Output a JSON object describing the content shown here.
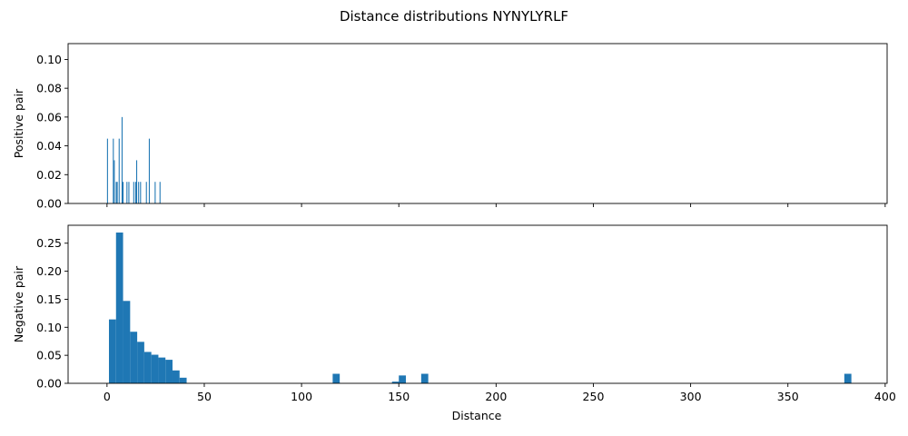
{
  "chart_data": {
    "type": "bar",
    "title": "Distance distributions NYNYLYRLF",
    "xlabel": "Distance",
    "xlim": [
      -20,
      401
    ],
    "xticks": [
      0,
      50,
      100,
      150,
      200,
      250,
      300,
      350,
      400
    ],
    "xtick_labels": [
      "0",
      "50",
      "100",
      "150",
      "200",
      "250",
      "300",
      "350",
      "400"
    ],
    "color": "#1f77b4",
    "panels": [
      {
        "name": "positive",
        "ylabel": "Positive pair",
        "ylim": [
          0,
          0.111
        ],
        "yticks": [
          0.0,
          0.02,
          0.04,
          0.06,
          0.08,
          0.1
        ],
        "ytick_labels": [
          "0.00",
          "0.02",
          "0.04",
          "0.06",
          "0.08",
          "0.10"
        ],
        "show_x_tick_labels": false,
        "bin_width": 0.5,
        "bins": [
          {
            "x": 0,
            "y": 0.045
          },
          {
            "x": 3,
            "y": 0.045
          },
          {
            "x": 3.5,
            "y": 0.03
          },
          {
            "x": 4.5,
            "y": 0.015
          },
          {
            "x": 5,
            "y": 0.015
          },
          {
            "x": 6,
            "y": 0.045
          },
          {
            "x": 7.5,
            "y": 0.06
          },
          {
            "x": 8,
            "y": 0.015
          },
          {
            "x": 10,
            "y": 0.015
          },
          {
            "x": 11,
            "y": 0.015
          },
          {
            "x": 13.5,
            "y": 0.015
          },
          {
            "x": 14.5,
            "y": 0.015
          },
          {
            "x": 15,
            "y": 0.03
          },
          {
            "x": 16,
            "y": 0.015
          },
          {
            "x": 17,
            "y": 0.015
          },
          {
            "x": 20,
            "y": 0.015
          },
          {
            "x": 21.5,
            "y": 0.045
          },
          {
            "x": 24.5,
            "y": 0.015
          },
          {
            "x": 27,
            "y": 0.015
          }
        ]
      },
      {
        "name": "negative",
        "ylabel": "Negative pair",
        "ylim": [
          0,
          0.282
        ],
        "yticks": [
          0.0,
          0.05,
          0.1,
          0.15,
          0.2,
          0.25
        ],
        "ytick_labels": [
          "0.00",
          "0.05",
          "0.10",
          "0.15",
          "0.20",
          "0.25"
        ],
        "show_x_tick_labels": true,
        "bin_width": 3.63,
        "bins": [
          {
            "x": 1.0,
            "y": 0.114
          },
          {
            "x": 4.63,
            "y": 0.269
          },
          {
            "x": 8.26,
            "y": 0.147
          },
          {
            "x": 11.89,
            "y": 0.092
          },
          {
            "x": 15.52,
            "y": 0.074
          },
          {
            "x": 19.15,
            "y": 0.056
          },
          {
            "x": 22.78,
            "y": 0.051
          },
          {
            "x": 26.41,
            "y": 0.046
          },
          {
            "x": 30.04,
            "y": 0.042
          },
          {
            "x": 33.67,
            "y": 0.023
          },
          {
            "x": 37.3,
            "y": 0.01
          },
          {
            "x": 116.0,
            "y": 0.017
          },
          {
            "x": 146.5,
            "y": 0.003
          },
          {
            "x": 150.0,
            "y": 0.014
          },
          {
            "x": 161.5,
            "y": 0.017
          },
          {
            "x": 379.0,
            "y": 0.017
          }
        ]
      }
    ]
  }
}
